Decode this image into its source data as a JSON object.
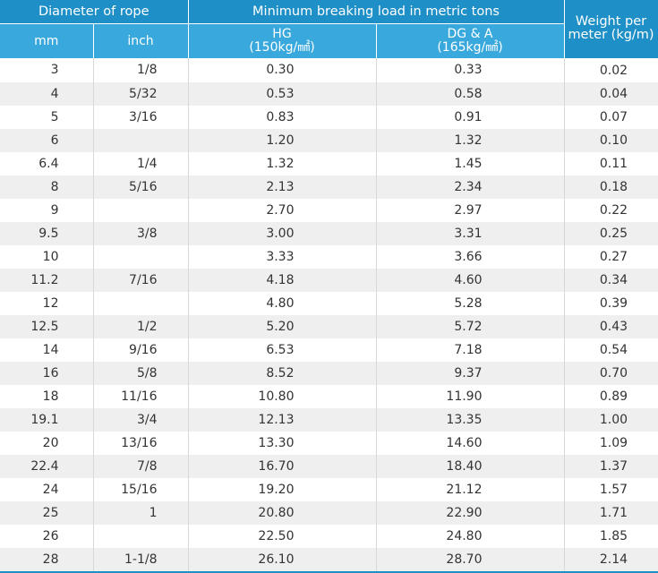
{
  "header": {
    "group_diameter": "Diameter of rope",
    "group_breaking": "Minimum breaking load in metric tons",
    "weight": "Weight per meter (kg/m)",
    "col_mm": "mm",
    "col_inch": "inch",
    "col_hg_name": "HG",
    "col_hg_unit": "(150kg/㎟)",
    "col_dg_name": "DG & A",
    "col_dg_unit": "(165kg/㎟)"
  },
  "rows": [
    {
      "mm": "3",
      "inch": "1/8",
      "hg": "0.30",
      "dg": "0.33",
      "wt": "0.02"
    },
    {
      "mm": "4",
      "inch": "5/32",
      "hg": "0.53",
      "dg": "0.58",
      "wt": "0.04"
    },
    {
      "mm": "5",
      "inch": "3/16",
      "hg": "0.83",
      "dg": "0.91",
      "wt": "0.07"
    },
    {
      "mm": "6",
      "inch": "",
      "hg": "1.20",
      "dg": "1.32",
      "wt": "0.10"
    },
    {
      "mm": "6.4",
      "inch": "1/4",
      "hg": "1.32",
      "dg": "1.45",
      "wt": "0.11"
    },
    {
      "mm": "8",
      "inch": "5/16",
      "hg": "2.13",
      "dg": "2.34",
      "wt": "0.18"
    },
    {
      "mm": "9",
      "inch": "",
      "hg": "2.70",
      "dg": "2.97",
      "wt": "0.22"
    },
    {
      "mm": "9.5",
      "inch": "3/8",
      "hg": "3.00",
      "dg": "3.31",
      "wt": "0.25"
    },
    {
      "mm": "10",
      "inch": "",
      "hg": "3.33",
      "dg": "3.66",
      "wt": "0.27"
    },
    {
      "mm": "11.2",
      "inch": "7/16",
      "hg": "4.18",
      "dg": "4.60",
      "wt": "0.34"
    },
    {
      "mm": "12",
      "inch": "",
      "hg": "4.80",
      "dg": "5.28",
      "wt": "0.39"
    },
    {
      "mm": "12.5",
      "inch": "1/2",
      "hg": "5.20",
      "dg": "5.72",
      "wt": "0.43"
    },
    {
      "mm": "14",
      "inch": "9/16",
      "hg": "6.53",
      "dg": "7.18",
      "wt": "0.54"
    },
    {
      "mm": "16",
      "inch": "5/8",
      "hg": "8.52",
      "dg": "9.37",
      "wt": "0.70"
    },
    {
      "mm": "18",
      "inch": "11/16",
      "hg": "10.80",
      "dg": "11.90",
      "wt": "0.89"
    },
    {
      "mm": "19.1",
      "inch": "3/4",
      "hg": "12.13",
      "dg": "13.35",
      "wt": "1.00"
    },
    {
      "mm": "20",
      "inch": "13/16",
      "hg": "13.30",
      "dg": "14.60",
      "wt": "1.09"
    },
    {
      "mm": "22.4",
      "inch": "7/8",
      "hg": "16.70",
      "dg": "18.40",
      "wt": "1.37"
    },
    {
      "mm": "24",
      "inch": "15/16",
      "hg": "19.20",
      "dg": "21.12",
      "wt": "1.57"
    },
    {
      "mm": "25",
      "inch": "1",
      "hg": "20.80",
      "dg": "22.90",
      "wt": "1.71"
    },
    {
      "mm": "26",
      "inch": "",
      "hg": "22.50",
      "dg": "24.80",
      "wt": "1.85"
    },
    {
      "mm": "28",
      "inch": "1-1/8",
      "hg": "26.10",
      "dg": "28.70",
      "wt": "2.14"
    }
  ],
  "colors": {
    "header_dark": "#1f8fc7",
    "header_light": "#39a8dd",
    "row_stripe": "#efefef"
  }
}
